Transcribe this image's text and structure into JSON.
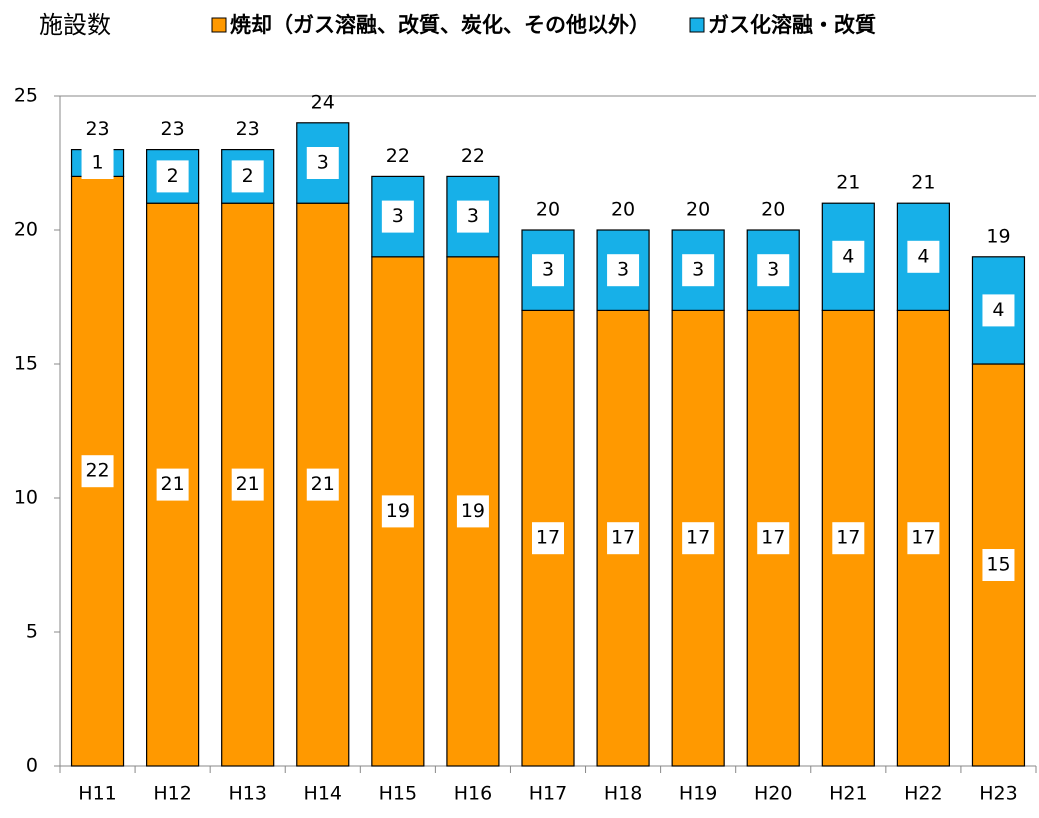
{
  "chart_data": {
    "type": "stacked_bar",
    "y_label": "施設数",
    "categories": [
      "H11",
      "H12",
      "H13",
      "H14",
      "H15",
      "H16",
      "H17",
      "H18",
      "H19",
      "H20",
      "H21",
      "H22",
      "H23"
    ],
    "series": [
      {
        "name": "焼却（ガス溶融、改質、炭化、その他以外）",
        "color": "#FF9900",
        "values": [
          22,
          21,
          21,
          21,
          19,
          19,
          17,
          17,
          17,
          17,
          17,
          17,
          15
        ]
      },
      {
        "name": "ガス化溶融・改質",
        "color": "#17B0E8",
        "values": [
          1,
          2,
          2,
          3,
          3,
          3,
          3,
          3,
          3,
          3,
          4,
          4,
          4
        ]
      }
    ],
    "totals": [
      23,
      23,
      23,
      24,
      22,
      22,
      20,
      20,
      20,
      20,
      21,
      21,
      19
    ],
    "ylim": [
      0,
      25
    ],
    "yticks": [
      0,
      5,
      10,
      15,
      20,
      25
    ],
    "legend": "top"
  }
}
